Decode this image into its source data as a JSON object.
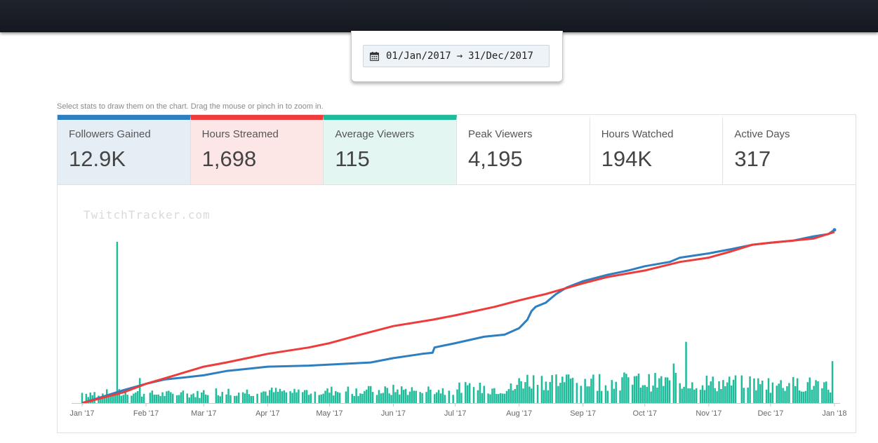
{
  "date_range": {
    "start": "01/Jan/2017",
    "arrow": "→",
    "end": "31/Dec/2017"
  },
  "hint": "Select stats to draw them on the chart. Drag the mouse or pinch in to zoom in.",
  "stats": [
    {
      "label": "Followers Gained",
      "value": "12.9K",
      "selected": true,
      "color": "#2e7fc0",
      "bg": "#e6eef5"
    },
    {
      "label": "Hours Streamed",
      "value": "1,698",
      "selected": true,
      "color": "#ee3b3b",
      "bg": "#fde6e6"
    },
    {
      "label": "Average Viewers",
      "value": "115",
      "selected": true,
      "color": "#1fbc9c",
      "bg": "#e3f6f1"
    },
    {
      "label": "Peak Viewers",
      "value": "4,195",
      "selected": false
    },
    {
      "label": "Hours Watched",
      "value": "194K",
      "selected": false
    },
    {
      "label": "Active Days",
      "value": "317",
      "selected": false
    }
  ],
  "watermark": "TwitchTracker.com",
  "chart_data": {
    "type": "line",
    "x_tick_labels": [
      "Jan '17",
      "Feb '17",
      "Mar '17",
      "Apr '17",
      "May '17",
      "Jun '17",
      "Jul '17",
      "Aug '17",
      "Sep '17",
      "Oct '17",
      "Nov '17",
      "Dec '17",
      "Jan '18"
    ],
    "x_unit": "day of year 2017 (0 = Jan 1, 365 = Jan 1 2018)",
    "x_range": [
      0,
      365
    ],
    "y_axis_shown": false,
    "grid": false,
    "legend": "none",
    "series": [
      {
        "name": "Followers Gained",
        "kind": "cumulative-line",
        "color": "#2e7fc0",
        "unit": "fraction of period total",
        "points": [
          [
            0,
            0
          ],
          [
            10,
            0.03
          ],
          [
            20,
            0.06
          ],
          [
            31,
            0.09
          ],
          [
            40,
            0.11
          ],
          [
            50,
            0.12
          ],
          [
            59,
            0.13
          ],
          [
            70,
            0.15
          ],
          [
            80,
            0.16
          ],
          [
            90,
            0.17
          ],
          [
            110,
            0.175
          ],
          [
            130,
            0.185
          ],
          [
            140,
            0.19
          ],
          [
            151,
            0.21
          ],
          [
            165,
            0.23
          ],
          [
            170,
            0.235
          ],
          [
            171,
            0.26
          ],
          [
            181,
            0.28
          ],
          [
            195,
            0.31
          ],
          [
            205,
            0.32
          ],
          [
            212,
            0.35
          ],
          [
            216,
            0.39
          ],
          [
            218,
            0.43
          ],
          [
            220,
            0.45
          ],
          [
            225,
            0.47
          ],
          [
            230,
            0.51
          ],
          [
            235,
            0.54
          ],
          [
            243,
            0.57
          ],
          [
            255,
            0.6
          ],
          [
            265,
            0.62
          ],
          [
            273,
            0.64
          ],
          [
            285,
            0.66
          ],
          [
            290,
            0.68
          ],
          [
            304,
            0.7
          ],
          [
            315,
            0.72
          ],
          [
            325,
            0.74
          ],
          [
            334,
            0.75
          ],
          [
            345,
            0.76
          ],
          [
            355,
            0.78
          ],
          [
            362,
            0.79
          ],
          [
            365,
            0.81
          ]
        ]
      },
      {
        "name": "Hours Streamed",
        "kind": "cumulative-line",
        "color": "#ee3b3b",
        "unit": "fraction of period total",
        "points": [
          [
            0,
            0
          ],
          [
            20,
            0.05
          ],
          [
            31,
            0.09
          ],
          [
            45,
            0.13
          ],
          [
            59,
            0.17
          ],
          [
            70,
            0.19
          ],
          [
            90,
            0.23
          ],
          [
            110,
            0.26
          ],
          [
            120,
            0.28
          ],
          [
            135,
            0.32
          ],
          [
            151,
            0.36
          ],
          [
            170,
            0.39
          ],
          [
            181,
            0.41
          ],
          [
            200,
            0.45
          ],
          [
            212,
            0.48
          ],
          [
            225,
            0.51
          ],
          [
            243,
            0.56
          ],
          [
            255,
            0.59
          ],
          [
            273,
            0.62
          ],
          [
            290,
            0.66
          ],
          [
            304,
            0.68
          ],
          [
            315,
            0.71
          ],
          [
            325,
            0.74
          ],
          [
            334,
            0.75
          ],
          [
            345,
            0.76
          ],
          [
            355,
            0.77
          ],
          [
            365,
            0.8
          ]
        ]
      },
      {
        "name": "Average Viewers",
        "kind": "daily-bars",
        "color": "#1fbc9c",
        "unit": "average viewers",
        "spikes": [
          {
            "day": 17,
            "value": 1000
          },
          {
            "day": 28,
            "value": 155
          },
          {
            "day": 287,
            "value": 245
          },
          {
            "day": 293,
            "value": 380
          },
          {
            "day": 364,
            "value": 260
          }
        ],
        "monthly_typical_value": [
          60,
          55,
          70,
          70,
          75,
          80,
          90,
          140,
          135,
          130,
          120,
          115
        ],
        "max_value": 1000
      }
    ]
  }
}
